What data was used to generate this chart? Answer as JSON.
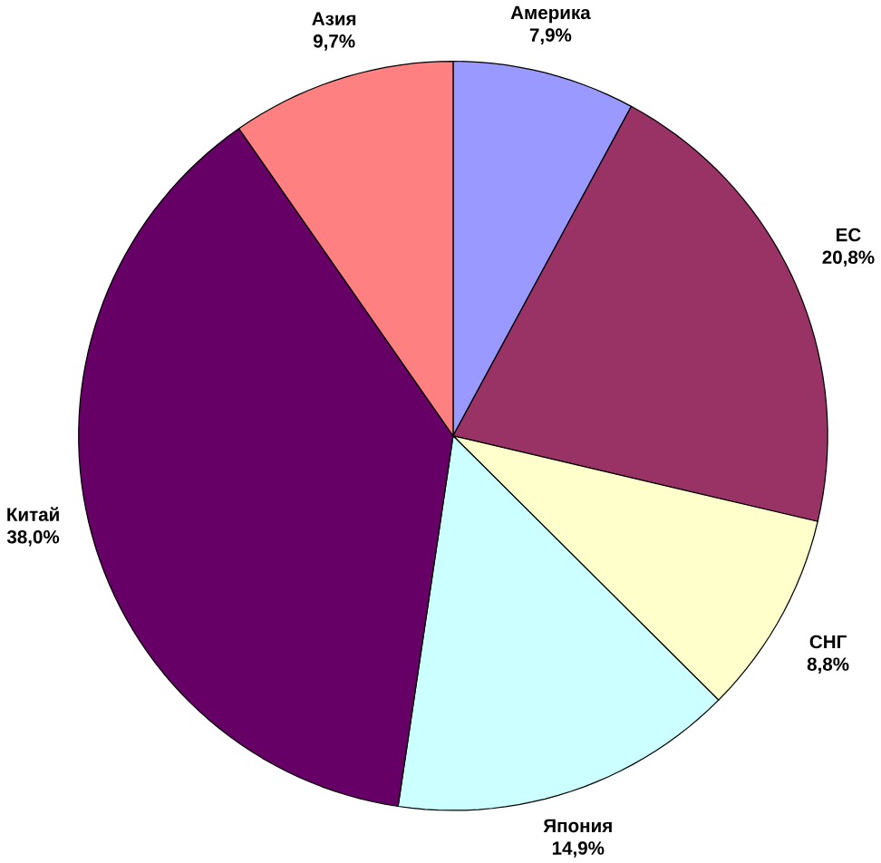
{
  "chart_data": {
    "type": "pie",
    "categories": [
      "Америка",
      "ЕС",
      "СНГ",
      "Япония",
      "Китай",
      "Азия"
    ],
    "values": [
      7.9,
      20.8,
      8.8,
      14.9,
      38.0,
      9.7
    ],
    "value_labels": [
      "7,9%",
      "20,8%",
      "8,8%",
      "14,9%",
      "38,0%",
      "9,7%"
    ],
    "colors": [
      "#9999ff",
      "#993366",
      "#ffffcc",
      "#ccffff",
      "#660066",
      "#ff8080"
    ]
  }
}
